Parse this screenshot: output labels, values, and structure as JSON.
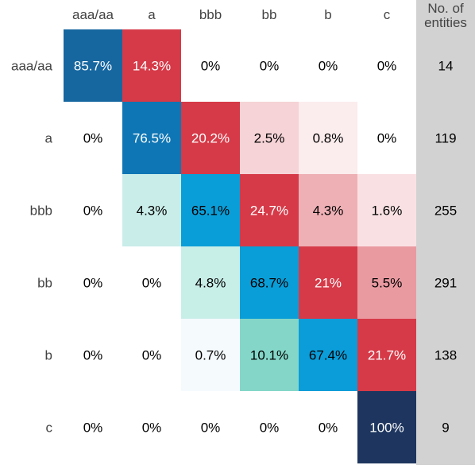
{
  "chart_data": {
    "type": "heatmap",
    "title": "",
    "xlabel": "",
    "ylabel": "",
    "x_categories": [
      "aaa/aa",
      "a",
      "bbb",
      "bb",
      "b",
      "c"
    ],
    "y_categories": [
      "aaa/aa",
      "a",
      "bbb",
      "bb",
      "b",
      "c"
    ],
    "count_header": "No. of\nentities",
    "counts": [
      14,
      119,
      255,
      291,
      138,
      9
    ],
    "values": [
      [
        85.7,
        14.3,
        0,
        0,
        0,
        0
      ],
      [
        0,
        76.5,
        20.2,
        2.5,
        0.8,
        0
      ],
      [
        0,
        4.3,
        65.1,
        24.7,
        4.3,
        1.6
      ],
      [
        0,
        0,
        4.8,
        68.7,
        21,
        5.5
      ],
      [
        0,
        0,
        0.7,
        10.1,
        67.4,
        21.7
      ],
      [
        0,
        0,
        0,
        0,
        0,
        100
      ]
    ],
    "cell_colors": [
      [
        "#1667a0",
        "#d63a48",
        null,
        null,
        null,
        null
      ],
      [
        null,
        "#0f76b5",
        "#d63a48",
        "#f6d3d6",
        "#fbeced",
        null
      ],
      [
        null,
        "#c9ede9",
        "#0a9ed8",
        "#d63a48",
        "#eeb0b5",
        "#f9e1e3"
      ],
      [
        null,
        null,
        "#c8eee8",
        "#099ed8",
        "#d63a48",
        "#e99aa1"
      ],
      [
        null,
        null,
        "#f5fafd",
        "#84d7c8",
        "#0a9dd9",
        "#d63a48"
      ],
      [
        null,
        null,
        null,
        null,
        null,
        "#1e365f"
      ]
    ],
    "colors": {
      "count_column_bg": "#d2d2d2",
      "dark_text": "#000000",
      "light_text": "#ffffff",
      "axis_label_text": "#444444"
    }
  }
}
